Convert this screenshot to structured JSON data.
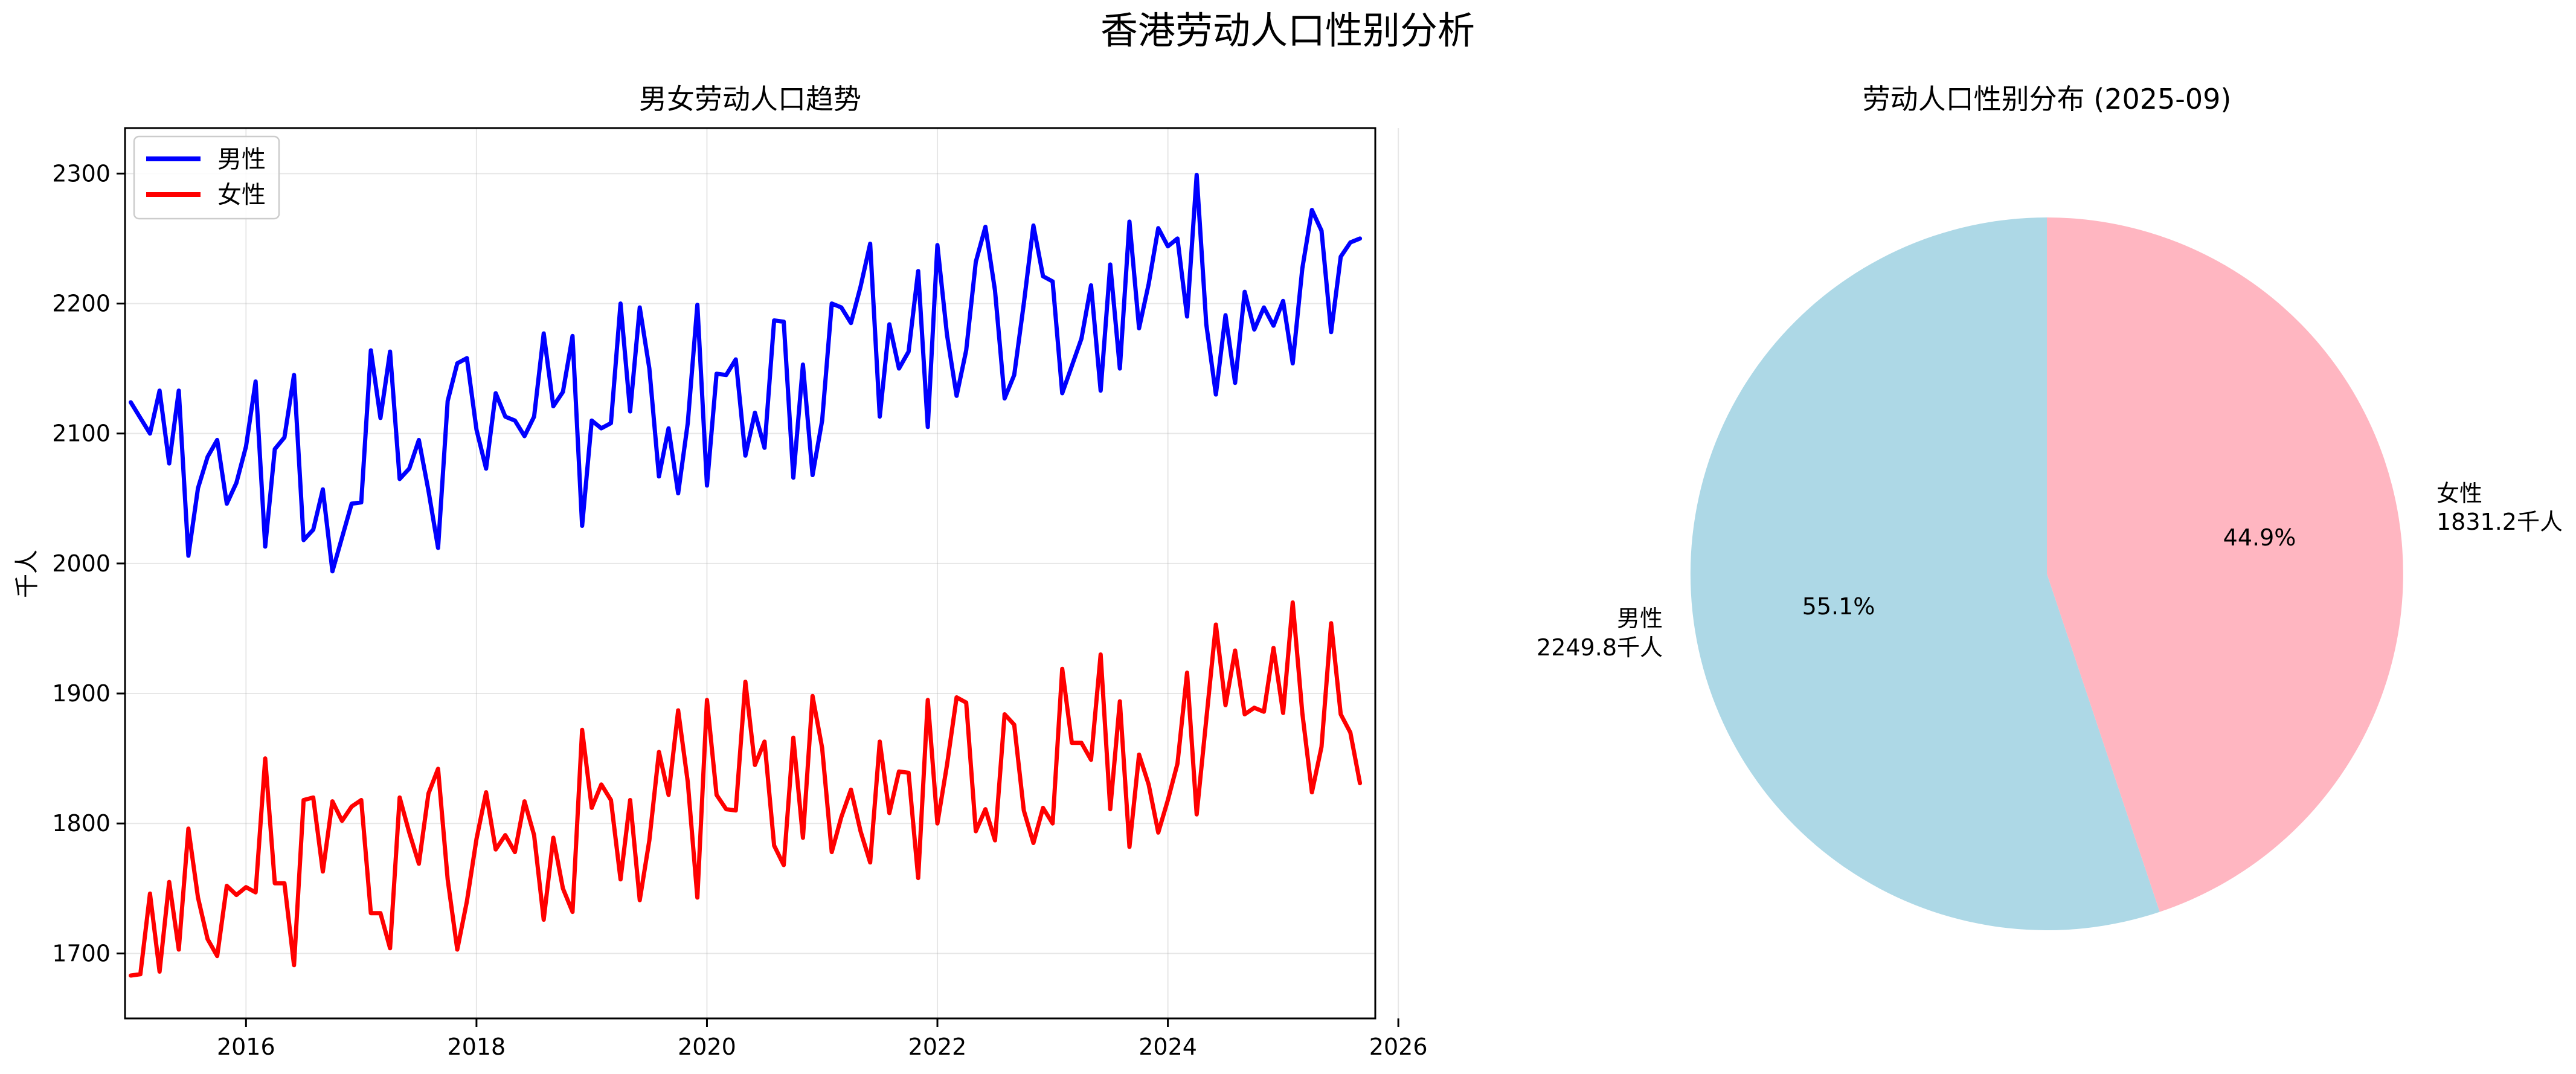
{
  "figure": {
    "title": "香港劳动人口性别分析"
  },
  "chart_data": [
    {
      "type": "line",
      "title": "男女劳动人口趋势",
      "xlabel": "",
      "ylabel": "千人",
      "xlim": [
        2014.95,
        2025.8
      ],
      "ylim": [
        1650,
        2335
      ],
      "x_ticks": [
        "2016",
        "2018",
        "2020",
        "2022",
        "2024",
        "2026"
      ],
      "y_ticks": [
        "1700",
        "1800",
        "1900",
        "2000",
        "2100",
        "2200",
        "2300"
      ],
      "grid": true,
      "legend_position": "upper left",
      "x_start": "2015-01",
      "x_end": "2025-09",
      "series": [
        {
          "name": "男性",
          "color": "#0000ff",
          "values": [
            2124,
            2112,
            2100,
            2133,
            2077,
            2133,
            2006,
            2058,
            2082,
            2095,
            2046,
            2062,
            2090,
            2140,
            2013,
            2088,
            2097,
            2145,
            2018,
            2026,
            2057,
            1994,
            2020,
            2046,
            2047,
            2164,
            2112,
            2163,
            2065,
            2073,
            2095,
            2056,
            2012,
            2125,
            2154,
            2158,
            2103,
            2073,
            2131,
            2113,
            2110,
            2098,
            2113,
            2177,
            2121,
            2132,
            2175,
            2029,
            2110,
            2104,
            2108,
            2200,
            2117,
            2197,
            2150,
            2067,
            2104,
            2054,
            2108,
            2199,
            2060,
            2146,
            2145,
            2157,
            2083,
            2116,
            2089,
            2187,
            2186,
            2066,
            2153,
            2068,
            2110,
            2200,
            2197,
            2185,
            2213,
            2246,
            2113,
            2184,
            2150,
            2163,
            2225,
            2105,
            2245,
            2176,
            2129,
            2164,
            2232,
            2259,
            2210,
            2127,
            2145,
            2200,
            2260,
            2221,
            2217,
            2131,
            2152,
            2173,
            2214,
            2133,
            2230,
            2150,
            2263,
            2181,
            2215,
            2258,
            2244,
            2250,
            2190,
            2299,
            2184,
            2130,
            2191,
            2139,
            2209,
            2180,
            2197,
            2183,
            2202,
            2154,
            2227,
            2272,
            2256,
            2178,
            2236,
            2247,
            2250
          ]
        },
        {
          "name": "女性",
          "color": "#ff0000",
          "values": [
            1683,
            1684,
            1746,
            1686,
            1755,
            1703,
            1796,
            1743,
            1711,
            1698,
            1752,
            1745,
            1751,
            1747,
            1850,
            1754,
            1754,
            1691,
            1818,
            1820,
            1763,
            1817,
            1802,
            1813,
            1818,
            1731,
            1731,
            1704,
            1820,
            1793,
            1769,
            1823,
            1842,
            1757,
            1703,
            1740,
            1788,
            1824,
            1780,
            1791,
            1778,
            1817,
            1791,
            1726,
            1789,
            1750,
            1732,
            1872,
            1812,
            1830,
            1818,
            1757,
            1818,
            1741,
            1787,
            1855,
            1822,
            1887,
            1832,
            1743,
            1895,
            1822,
            1811,
            1810,
            1909,
            1845,
            1863,
            1783,
            1768,
            1866,
            1789,
            1898,
            1858,
            1778,
            1805,
            1826,
            1794,
            1770,
            1863,
            1808,
            1840,
            1839,
            1758,
            1895,
            1800,
            1845,
            1897,
            1893,
            1794,
            1811,
            1787,
            1884,
            1876,
            1810,
            1785,
            1812,
            1800,
            1919,
            1862,
            1862,
            1849,
            1930,
            1811,
            1894,
            1782,
            1853,
            1830,
            1793,
            1818,
            1846,
            1916,
            1807,
            1880,
            1953,
            1891,
            1933,
            1884,
            1889,
            1886,
            1935,
            1885,
            1970,
            1885,
            1824,
            1859,
            1954,
            1884,
            1870,
            1831
          ]
        }
      ]
    },
    {
      "type": "pie",
      "title": "劳动人口性别分布 (2025-09)",
      "unit": "千人",
      "start_angle_deg": 90,
      "slices": [
        {
          "label": "男性",
          "value": 2249.8,
          "value_label": "2249.8千人",
          "percent_label": "55.1%",
          "color": "#add8e6"
        },
        {
          "label": "女性",
          "value": 1831.2,
          "value_label": "1831.2千人",
          "percent_label": "44.9%",
          "color": "#ffb6c1"
        }
      ]
    }
  ]
}
